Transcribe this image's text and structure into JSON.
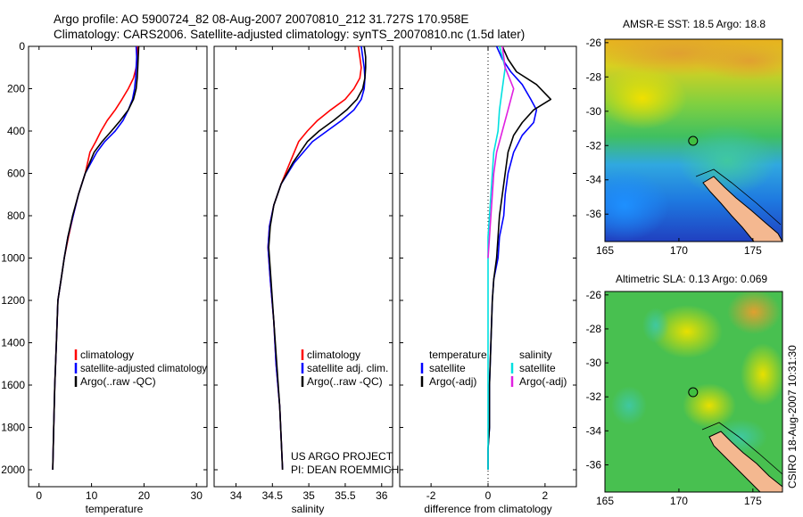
{
  "header": {
    "line1": "Argo profile: AO 5900724_82 08-Aug-2007 20070810_212 31.727S 170.958E",
    "line2": "Climatology: CARS2006. Satellite-adjusted climatology: synTS_20070810.nc (1.5d later)"
  },
  "side_label": "CSIRO 18-Aug-2007 10:31:30",
  "colors": {
    "climatology": "#ff0000",
    "satellite": "#0000ff",
    "argo": "#000000",
    "sat_salinity": "#00e0e0",
    "argo_adj_salinity": "#e020e0"
  },
  "chart_data": [
    {
      "type": "line",
      "xlabel": "temperature",
      "xlim": [
        -2,
        32
      ],
      "xticks": [
        0,
        10,
        20,
        30
      ],
      "ylim": [
        0,
        2080
      ],
      "yticks": [
        0,
        200,
        400,
        600,
        800,
        1000,
        1200,
        1400,
        1600,
        1800,
        2000
      ],
      "y_reversed": true,
      "legend": {
        "placement": "lower-center",
        "entries": [
          "climatology",
          "satellite-adjusted climatology",
          "Argo(..raw -QC)"
        ]
      },
      "series": [
        {
          "name": "climatology",
          "color": "#ff0000",
          "x": [
            18.8,
            18.7,
            18.5,
            18.0,
            17.0,
            15.8,
            14.5,
            13.0,
            11.8,
            10.8,
            9.7,
            8.8,
            7.5,
            6.5,
            5.6,
            4.8,
            4.2,
            3.6,
            3.3,
            3.0,
            2.8,
            2.6
          ],
          "y": [
            0,
            50,
            100,
            150,
            200,
            250,
            300,
            350,
            400,
            450,
            500,
            600,
            700,
            800,
            900,
            1000,
            1100,
            1200,
            1400,
            1600,
            1800,
            2000
          ]
        },
        {
          "name": "satellite-adjusted climatology",
          "color": "#0000ff",
          "x": [
            18.5,
            18.6,
            18.5,
            18.4,
            18.2,
            17.8,
            17.0,
            16.0,
            14.5,
            12.5,
            11.0,
            8.8,
            7.5,
            6.5,
            5.5,
            4.8,
            4.2,
            3.6,
            3.3,
            3.0,
            2.8,
            2.6
          ],
          "y": [
            0,
            50,
            100,
            150,
            200,
            250,
            300,
            350,
            400,
            450,
            500,
            600,
            700,
            800,
            900,
            1000,
            1100,
            1200,
            1400,
            1600,
            1800,
            2000
          ]
        },
        {
          "name": "Argo(..raw -QC)",
          "color": "#000000",
          "x": [
            19.0,
            18.9,
            18.8,
            18.7,
            18.5,
            18.0,
            17.0,
            15.5,
            13.8,
            12.0,
            10.5,
            8.8,
            7.5,
            6.4,
            5.5,
            4.8,
            4.2,
            3.6,
            3.3,
            3.0,
            2.8,
            2.6
          ],
          "y": [
            0,
            50,
            100,
            150,
            200,
            250,
            300,
            350,
            400,
            450,
            500,
            600,
            700,
            800,
            900,
            1000,
            1100,
            1200,
            1400,
            1600,
            1800,
            2000
          ]
        }
      ]
    },
    {
      "type": "line",
      "xlabel": "salinity",
      "xlim": [
        33.7,
        36.15
      ],
      "xticks": [
        34,
        34.5,
        35,
        35.5,
        36
      ],
      "xticklabels": [
        "34",
        "34.5",
        "35",
        "35.5",
        "36"
      ],
      "ylim": [
        0,
        2080
      ],
      "y_reversed": true,
      "legend": {
        "placement": "lower-center",
        "entries": [
          "climatology",
          "satellite adj. clim.",
          "Argo(..raw -QC)"
        ]
      },
      "annotation": [
        "US ARGO PROJECT",
        "PI: DEAN ROEMMICH"
      ],
      "series": [
        {
          "name": "climatology",
          "color": "#ff0000",
          "x": [
            35.68,
            35.7,
            35.72,
            35.7,
            35.62,
            35.5,
            35.3,
            35.12,
            34.98,
            34.86,
            34.74,
            34.62,
            34.52,
            34.46,
            34.44,
            34.47,
            34.52,
            34.55,
            34.6,
            34.62,
            34.64
          ],
          "y": [
            0,
            50,
            100,
            150,
            200,
            250,
            300,
            350,
            400,
            450,
            550,
            650,
            750,
            850,
            950,
            1100,
            1300,
            1500,
            1700,
            1850,
            2000
          ]
        },
        {
          "name": "satellite adj. clim.",
          "color": "#0000ff",
          "x": [
            35.72,
            35.74,
            35.76,
            35.77,
            35.76,
            35.72,
            35.62,
            35.45,
            35.25,
            35.05,
            34.8,
            34.62,
            34.52,
            34.46,
            34.44,
            34.47,
            34.52,
            34.55,
            34.6,
            34.62,
            34.64
          ],
          "y": [
            0,
            50,
            100,
            150,
            200,
            250,
            300,
            350,
            400,
            450,
            550,
            650,
            750,
            850,
            950,
            1100,
            1300,
            1500,
            1700,
            1850,
            2000
          ]
        },
        {
          "name": "Argo(..raw -QC)",
          "color": "#000000",
          "x": [
            35.76,
            35.78,
            35.78,
            35.77,
            35.74,
            35.66,
            35.52,
            35.34,
            35.14,
            34.98,
            34.78,
            34.62,
            34.52,
            34.47,
            34.45,
            34.48,
            34.52,
            34.56,
            34.6,
            34.62,
            34.64
          ],
          "y": [
            0,
            50,
            100,
            150,
            200,
            250,
            300,
            350,
            400,
            450,
            550,
            650,
            750,
            850,
            950,
            1100,
            1300,
            1500,
            1700,
            1850,
            2000
          ]
        }
      ]
    },
    {
      "type": "line",
      "xlabel": "difference from climatology",
      "xlim": [
        -3.1,
        3.1
      ],
      "xticks": [
        -2,
        0,
        2
      ],
      "ylim": [
        0,
        2080
      ],
      "y_reversed": true,
      "zero_line": "dotted",
      "legend": {
        "placement": "lower-center",
        "groups": [
          {
            "title": "temperature",
            "entries": [
              "satellite",
              "Argo(-adj)"
            ]
          },
          {
            "title": "salinity",
            "entries": [
              "satellite",
              "Argo(-adj)"
            ]
          }
        ]
      },
      "series": [
        {
          "name": "satellite",
          "group": "temperature",
          "color": "#0000ff",
          "x": [
            0.3,
            0.5,
            0.8,
            1.2,
            1.5,
            1.7,
            1.6,
            1.2,
            0.9,
            0.7,
            0.6,
            0.55,
            0.4,
            0.35,
            0.2,
            0.15,
            0.1,
            0.05,
            0.05,
            0.0,
            0.0
          ],
          "y": [
            0,
            60,
            120,
            180,
            250,
            300,
            360,
            420,
            500,
            600,
            700,
            800,
            900,
            1000,
            1100,
            1200,
            1400,
            1600,
            1800,
            1900,
            2000
          ]
        },
        {
          "name": "Argo(-adj)",
          "group": "temperature",
          "color": "#000000",
          "x": [
            0.5,
            0.7,
            1.0,
            1.7,
            2.2,
            1.6,
            1.2,
            0.9,
            0.7,
            0.6,
            0.5,
            0.4,
            0.35,
            0.3,
            0.2,
            0.15,
            0.1,
            0.05,
            0.05,
            0.0,
            0.0
          ],
          "y": [
            0,
            60,
            120,
            180,
            250,
            300,
            360,
            420,
            500,
            600,
            700,
            800,
            900,
            1000,
            1100,
            1200,
            1400,
            1600,
            1800,
            1900,
            2000
          ]
        },
        {
          "name": "satellite",
          "group": "salinity",
          "color": "#00e0e0",
          "x": [
            0.4,
            0.6,
            0.5,
            0.4,
            0.35,
            0.2,
            0.15,
            0.1,
            0.05,
            0.0,
            0.0,
            0.0,
            0.0,
            0.0,
            0.0,
            0.0,
            0.0,
            0.0
          ],
          "y": [
            0,
            100,
            200,
            300,
            400,
            500,
            600,
            700,
            800,
            900,
            1000,
            1200,
            1400,
            1600,
            1700,
            1800,
            1900,
            2000
          ]
        },
        {
          "name": "Argo(-adj)",
          "group": "salinity",
          "color": "#e020e0",
          "x": [
            0.5,
            0.6,
            0.9,
            0.7,
            0.5,
            0.3,
            0.2,
            0.15,
            0.1,
            0.05,
            0.0
          ],
          "y": [
            0,
            100,
            200,
            300,
            400,
            500,
            600,
            700,
            800,
            900,
            1000
          ]
        }
      ]
    },
    {
      "type": "heatmap",
      "title": "AMSR-E SST: 18.5 Argo: 18.8",
      "xlim": [
        165,
        177
      ],
      "ylim": [
        -37.6,
        -25.8
      ],
      "xticks": [
        165,
        170,
        175
      ],
      "yticks": [
        -26,
        -28,
        -30,
        -32,
        -34,
        -36
      ],
      "profile_position": [
        170.958,
        -31.727
      ]
    },
    {
      "type": "heatmap",
      "title": "Altimetric SLA: 0.13 Argo: 0.069",
      "xlim": [
        165,
        177
      ],
      "ylim": [
        -37.6,
        -25.8
      ],
      "xticks": [
        165,
        170,
        175
      ],
      "yticks": [
        -26,
        -28,
        -30,
        -32,
        -34,
        -36
      ],
      "profile_position": [
        170.958,
        -31.727
      ]
    }
  ]
}
